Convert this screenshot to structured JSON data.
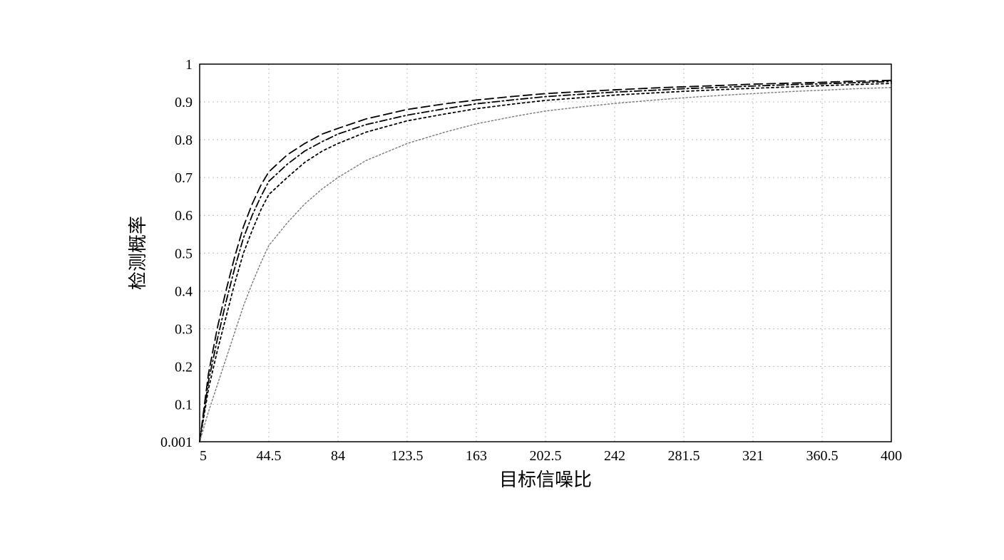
{
  "chart": {
    "type": "line",
    "xlabel": "目标信噪比",
    "ylabel": "检测概率",
    "label_fontsize": 26,
    "tick_fontsize": 20,
    "background_color": "#ffffff",
    "grid_color": "#bdbdbd",
    "border_color": "#000000",
    "grid_dasharray": "2 4",
    "xlim": [
      5,
      400
    ],
    "ylim": [
      0.001,
      1.0
    ],
    "xticks": [
      5,
      44.5,
      84,
      123.5,
      163,
      202.5,
      242,
      281.5,
      321,
      360.5,
      400
    ],
    "xtick_labels": [
      "5",
      "44.5",
      "84",
      "123.5",
      "163",
      "202.5",
      "242",
      "281.5",
      "321",
      "360.5",
      "400"
    ],
    "yticks": [
      0.001,
      0.1,
      0.2,
      0.3,
      0.4,
      0.5,
      0.6,
      0.7,
      0.8,
      0.9,
      1.0
    ],
    "ytick_labels": [
      "0.001",
      "0.1",
      "0.2",
      "0.3",
      "0.4",
      "0.5",
      "0.6",
      "0.7",
      "0.8",
      "0.9",
      "1"
    ],
    "series": [
      {
        "name": "series-1",
        "color": "#000000",
        "line_width": 1.8,
        "dasharray": "12 6",
        "x": [
          5,
          10,
          15,
          20,
          25,
          30,
          35,
          40,
          44.5,
          55,
          65,
          75,
          84,
          100,
          123.5,
          145,
          163,
          185,
          202.5,
          225,
          242,
          265,
          281.5,
          305,
          321,
          345,
          360.5,
          380,
          400
        ],
        "y": [
          0.001,
          0.18,
          0.3,
          0.4,
          0.49,
          0.57,
          0.63,
          0.68,
          0.715,
          0.76,
          0.79,
          0.815,
          0.83,
          0.855,
          0.88,
          0.895,
          0.905,
          0.915,
          0.922,
          0.928,
          0.932,
          0.937,
          0.94,
          0.944,
          0.947,
          0.95,
          0.952,
          0.955,
          0.957
        ]
      },
      {
        "name": "series-2",
        "color": "#000000",
        "line_width": 1.8,
        "dasharray": "10 4 2 4",
        "x": [
          5,
          10,
          15,
          20,
          25,
          30,
          35,
          40,
          44.5,
          55,
          65,
          75,
          84,
          100,
          123.5,
          145,
          163,
          185,
          202.5,
          225,
          242,
          265,
          281.5,
          305,
          321,
          345,
          360.5,
          380,
          400
        ],
        "y": [
          0.001,
          0.16,
          0.27,
          0.37,
          0.46,
          0.54,
          0.6,
          0.65,
          0.69,
          0.735,
          0.77,
          0.795,
          0.815,
          0.84,
          0.865,
          0.882,
          0.895,
          0.906,
          0.914,
          0.921,
          0.926,
          0.931,
          0.935,
          0.939,
          0.942,
          0.946,
          0.948,
          0.951,
          0.954
        ]
      },
      {
        "name": "series-3",
        "color": "#000000",
        "line_width": 1.8,
        "dasharray": "3 4",
        "x": [
          5,
          10,
          15,
          20,
          25,
          30,
          35,
          40,
          44.5,
          55,
          65,
          75,
          84,
          100,
          123.5,
          145,
          163,
          185,
          202.5,
          225,
          242,
          265,
          281.5,
          305,
          321,
          345,
          360.5,
          380,
          400
        ],
        "y": [
          0.001,
          0.14,
          0.24,
          0.33,
          0.42,
          0.5,
          0.56,
          0.615,
          0.655,
          0.7,
          0.74,
          0.77,
          0.79,
          0.82,
          0.85,
          0.868,
          0.882,
          0.895,
          0.904,
          0.912,
          0.918,
          0.924,
          0.928,
          0.933,
          0.936,
          0.94,
          0.943,
          0.946,
          0.949
        ]
      },
      {
        "name": "series-4",
        "color": "#808080",
        "line_width": 1.5,
        "dasharray": "2 3",
        "x": [
          5,
          10,
          15,
          20,
          25,
          30,
          35,
          40,
          44.5,
          55,
          65,
          75,
          84,
          100,
          123.5,
          145,
          163,
          185,
          202.5,
          225,
          242,
          265,
          281.5,
          305,
          321,
          345,
          360.5,
          380,
          400
        ],
        "y": [
          0.001,
          0.08,
          0.15,
          0.22,
          0.29,
          0.36,
          0.42,
          0.475,
          0.52,
          0.58,
          0.63,
          0.67,
          0.7,
          0.745,
          0.79,
          0.82,
          0.842,
          0.862,
          0.876,
          0.888,
          0.896,
          0.905,
          0.911,
          0.918,
          0.922,
          0.928,
          0.931,
          0.935,
          0.938
        ]
      }
    ]
  }
}
